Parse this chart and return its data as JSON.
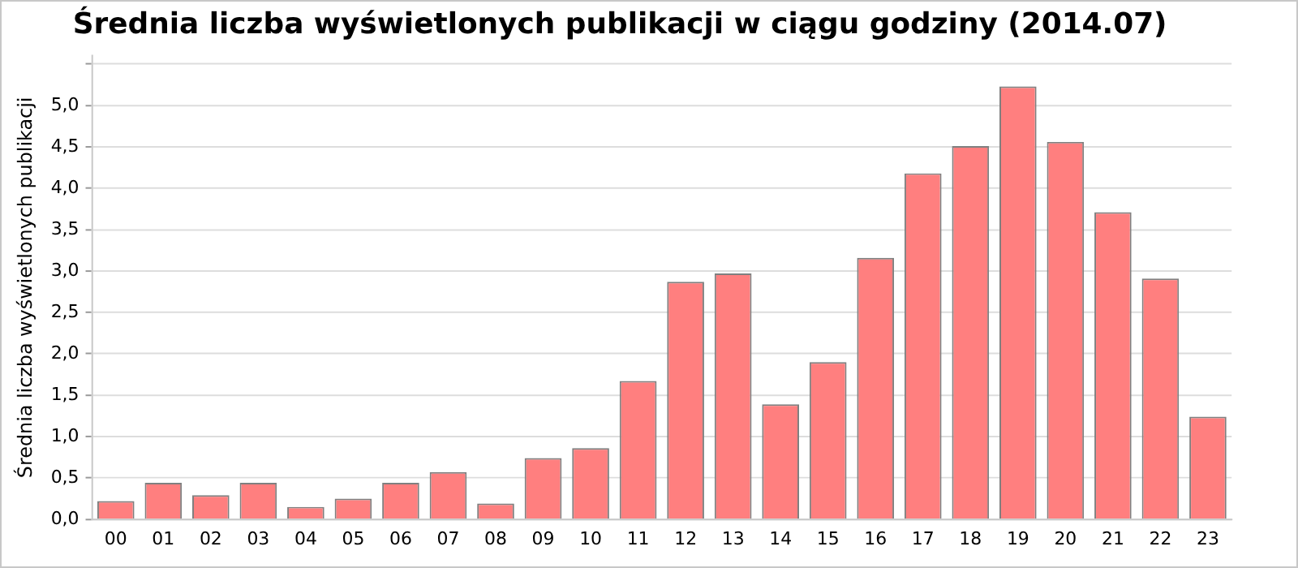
{
  "chart_data": {
    "type": "bar",
    "title": "Średnia liczba wyświetlonych publikacji w ciągu godziny (2014.07)",
    "ylabel": "Średnia liczba wyświetlonych publikacji",
    "categories": [
      "00",
      "01",
      "02",
      "03",
      "04",
      "05",
      "06",
      "07",
      "08",
      "09",
      "10",
      "11",
      "12",
      "13",
      "14",
      "15",
      "16",
      "17",
      "18",
      "19",
      "20",
      "21",
      "22",
      "23"
    ],
    "values": [
      0.22,
      0.44,
      0.29,
      0.44,
      0.15,
      0.25,
      0.44,
      0.57,
      0.19,
      0.74,
      0.86,
      1.67,
      2.87,
      2.97,
      1.39,
      1.9,
      3.16,
      4.18,
      4.51,
      5.23,
      4.56,
      3.71,
      2.91,
      1.24
    ],
    "color": "#ff7f7f",
    "ylim": [
      0,
      5.6
    ],
    "yticks": [
      {
        "value": 0,
        "label": "0,0"
      },
      {
        "value": 0.5,
        "label": "0,5"
      },
      {
        "value": 1,
        "label": "1,0"
      },
      {
        "value": 1.5,
        "label": "1,5"
      },
      {
        "value": 2,
        "label": "2,0"
      },
      {
        "value": 2.5,
        "label": "2,5"
      },
      {
        "value": 3,
        "label": "3,0"
      },
      {
        "value": 3.5,
        "label": "3,5"
      },
      {
        "value": 4,
        "label": "4,0"
      },
      {
        "value": 4.5,
        "label": "4,5"
      },
      {
        "value": 5,
        "label": "5,0"
      },
      {
        "value": 5.5,
        "label": null
      }
    ],
    "grid": "y",
    "legend": false
  }
}
